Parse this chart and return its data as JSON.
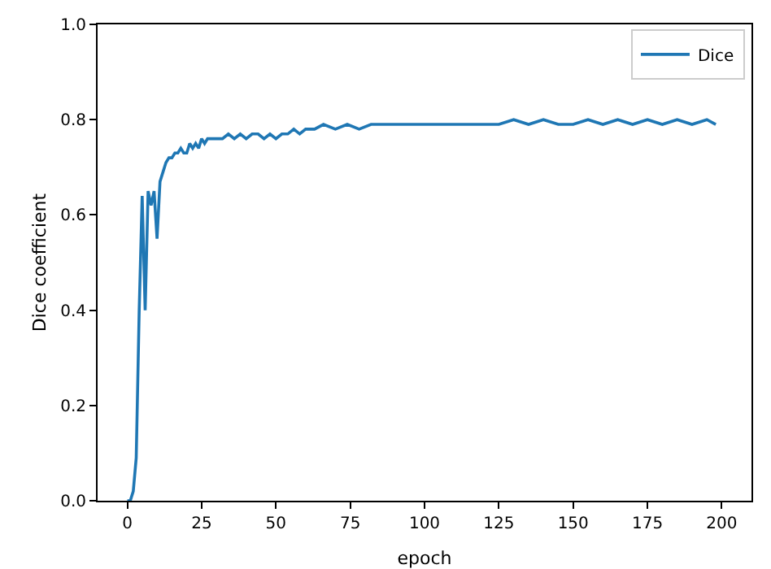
{
  "chart_data": {
    "type": "line",
    "xlabel": "epoch",
    "ylabel": "Dice coefficient",
    "xlim": [
      -10,
      210
    ],
    "xticks": [
      0,
      25,
      50,
      75,
      100,
      125,
      150,
      175,
      200
    ],
    "ylim": [
      0,
      1
    ],
    "yticks": [
      {
        "value": 0,
        "label": "0.0"
      },
      0.2,
      0.4,
      0.6,
      0.8,
      {
        "value": 1,
        "label": "1.0"
      }
    ],
    "legend": "top right",
    "grid": false,
    "marker": "none",
    "line_style": "solid",
    "series": [
      {
        "name": "Dice",
        "color": "#1f77b4",
        "x": [
          0,
          1,
          2,
          3,
          4,
          5,
          6,
          7,
          8,
          9,
          10,
          11,
          12,
          13,
          14,
          15,
          16,
          17,
          18,
          19,
          20,
          21,
          22,
          23,
          24,
          25,
          26,
          27,
          28,
          30,
          32,
          34,
          36,
          38,
          40,
          42,
          44,
          46,
          48,
          50,
          52,
          54,
          56,
          58,
          60,
          63,
          66,
          70,
          74,
          78,
          82,
          86,
          90,
          95,
          100,
          105,
          110,
          115,
          120,
          125,
          130,
          135,
          140,
          145,
          150,
          155,
          160,
          165,
          170,
          175,
          180,
          185,
          190,
          195,
          198
        ],
        "values": [
          0.0,
          0.0,
          0.02,
          0.09,
          0.4,
          0.64,
          0.4,
          0.65,
          0.62,
          0.65,
          0.55,
          0.67,
          0.69,
          0.71,
          0.72,
          0.72,
          0.73,
          0.73,
          0.74,
          0.73,
          0.73,
          0.75,
          0.74,
          0.75,
          0.74,
          0.76,
          0.75,
          0.76,
          0.76,
          0.76,
          0.76,
          0.77,
          0.76,
          0.77,
          0.76,
          0.77,
          0.77,
          0.76,
          0.77,
          0.76,
          0.77,
          0.77,
          0.78,
          0.77,
          0.78,
          0.78,
          0.79,
          0.78,
          0.79,
          0.78,
          0.79,
          0.79,
          0.79,
          0.79,
          0.79,
          0.79,
          0.79,
          0.79,
          0.79,
          0.79,
          0.8,
          0.79,
          0.8,
          0.79,
          0.79,
          0.8,
          0.79,
          0.8,
          0.79,
          0.8,
          0.79,
          0.8,
          0.79,
          0.8,
          0.79
        ]
      }
    ]
  }
}
